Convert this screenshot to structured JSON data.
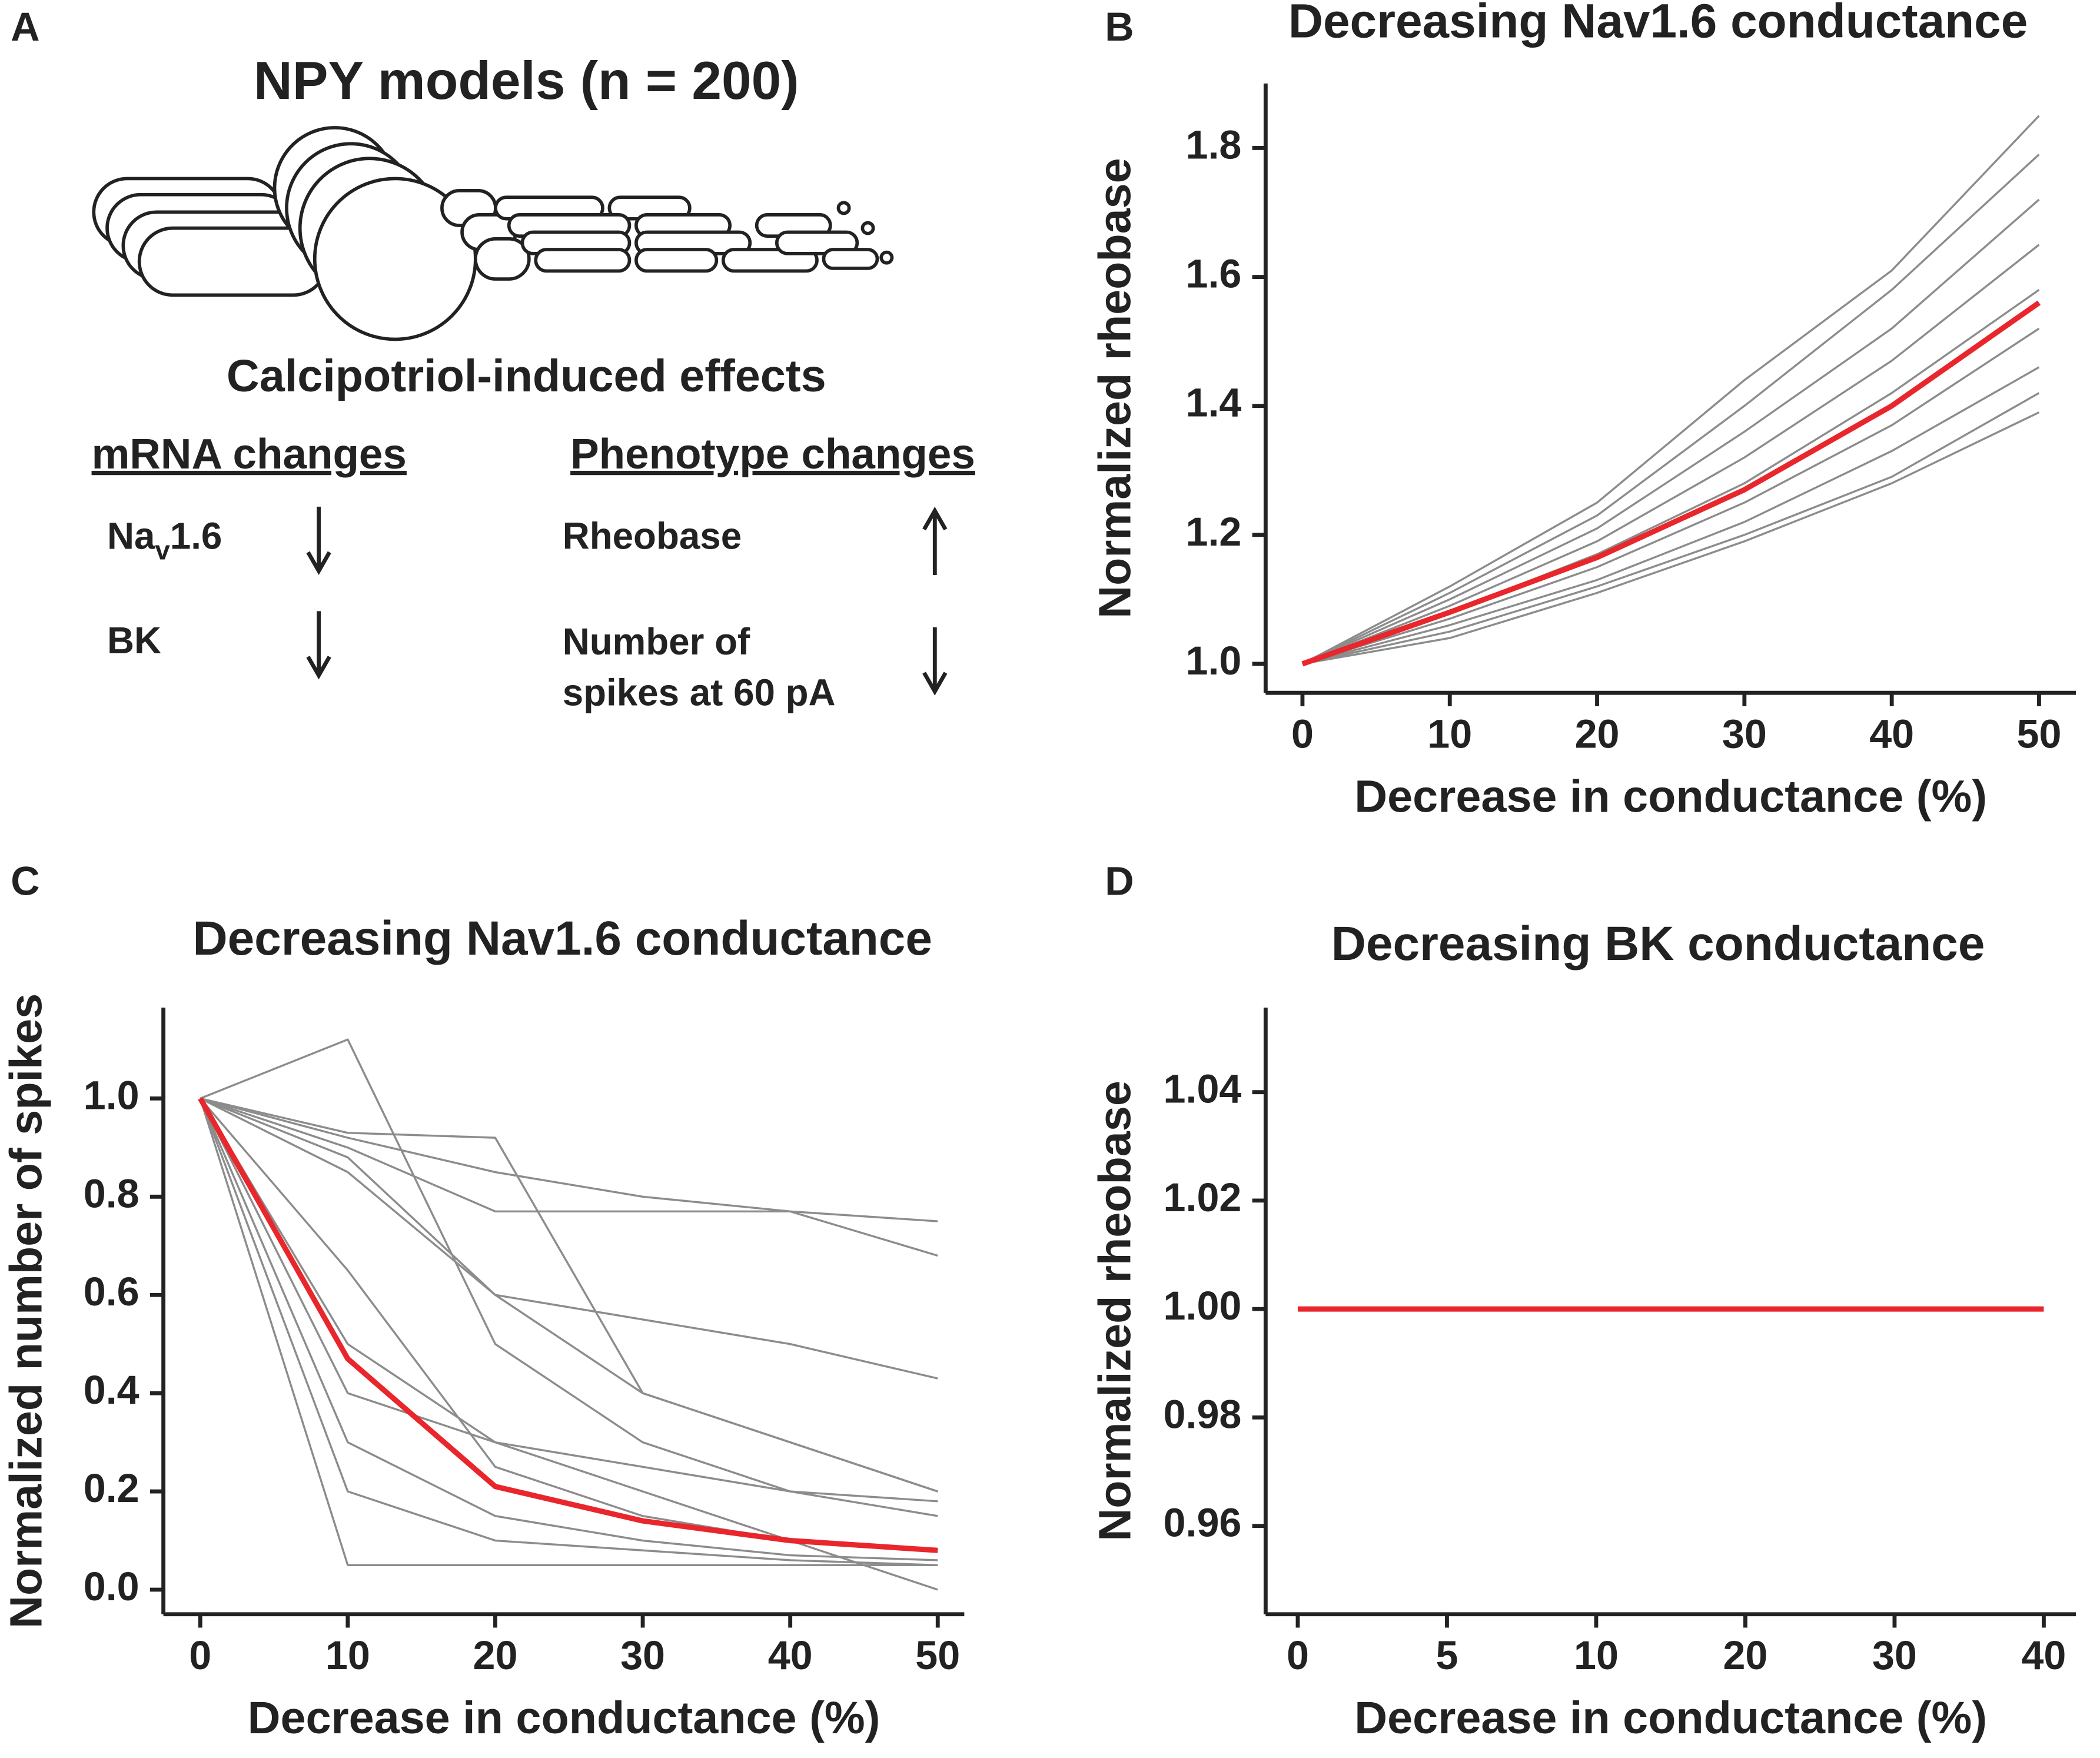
{
  "panel_a": {
    "panel_label": "A",
    "title": "NPY models (n = 200)",
    "subtitle": "Calcipotriol-induced effects",
    "mrna": {
      "heading": "mRNA changes",
      "items": [
        {
          "label": {
            "base": "Na",
            "sub": "v",
            "rest": "1.6"
          },
          "direction": "down"
        },
        {
          "label": "BK",
          "direction": "down"
        }
      ]
    },
    "phenotype": {
      "heading": "Phenotype changes",
      "items": [
        {
          "label": [
            "Rheobase"
          ],
          "direction": "up"
        },
        {
          "label": [
            "Number of",
            "spikes at 60 pA"
          ],
          "direction": "down"
        }
      ]
    }
  },
  "chart_data": [
    {
      "type": "line",
      "panel_label": "B",
      "title": "Decreasing Nav1.6 conductance",
      "xlabel": "Decrease in conductance (%)",
      "ylabel": "Normalized rheobase",
      "x": [
        0,
        10,
        20,
        30,
        40,
        50
      ],
      "xlim": [
        -2.5,
        52.5
      ],
      "xticks": [
        0,
        10,
        20,
        30,
        40,
        50
      ],
      "ylim": [
        0.955,
        1.9
      ],
      "yticks": [
        {
          "value": 1,
          "label": "1.0"
        },
        1.2,
        1.4,
        1.6,
        1.8
      ],
      "series": [
        {
          "color": "#8c8c8c",
          "values": [
            1,
            1.12,
            1.25,
            1.44,
            1.61,
            1.85
          ]
        },
        {
          "color": "#8c8c8c",
          "values": [
            1,
            1.11,
            1.23,
            1.4,
            1.58,
            1.79
          ]
        },
        {
          "color": "#8c8c8c",
          "values": [
            1,
            1.1,
            1.21,
            1.36,
            1.52,
            1.72
          ]
        },
        {
          "color": "#8c8c8c",
          "values": [
            1,
            1.09,
            1.19,
            1.32,
            1.47,
            1.65
          ]
        },
        {
          "color": "#8c8c8c",
          "values": [
            1,
            1.08,
            1.17,
            1.28,
            1.42,
            1.58
          ]
        },
        {
          "color": "#8c8c8c",
          "values": [
            1,
            1.07,
            1.15,
            1.25,
            1.37,
            1.52
          ]
        },
        {
          "color": "#8c8c8c",
          "values": [
            1,
            1.06,
            1.13,
            1.22,
            1.33,
            1.46
          ]
        },
        {
          "color": "#8c8c8c",
          "values": [
            1,
            1.05,
            1.12,
            1.2,
            1.29,
            1.42
          ]
        },
        {
          "color": "#8c8c8c",
          "values": [
            1,
            1.04,
            1.11,
            1.19,
            1.28,
            1.39
          ]
        },
        {
          "color": "#e8262b",
          "values": [
            1,
            1.08,
            1.165,
            1.27,
            1.4,
            1.56
          ]
        }
      ]
    },
    {
      "type": "line",
      "panel_label": "C",
      "title": "Decreasing Nav1.6 conductance",
      "xlabel": "Decrease in conductance (%)",
      "ylabel": "Normalized number of spikes",
      "x": [
        0,
        10,
        20,
        30,
        40,
        50
      ],
      "xlim": [
        -2.5,
        51.8
      ],
      "xticks": [
        0,
        10,
        20,
        30,
        40,
        50
      ],
      "ylim": [
        -0.05,
        1.185
      ],
      "yticks": [
        {
          "value": 0,
          "label": "0.0"
        },
        0.2,
        0.4,
        0.6,
        0.8,
        {
          "value": 1,
          "label": "1.0"
        }
      ],
      "series": [
        {
          "color": "#8c8c8c",
          "values": [
            1,
            1.12,
            0.5,
            0.3,
            0.2,
            0.15
          ]
        },
        {
          "color": "#8c8c8c",
          "values": [
            1,
            0.92,
            0.85,
            0.8,
            0.77,
            0.75
          ]
        },
        {
          "color": "#8c8c8c",
          "values": [
            1,
            0.9,
            0.77,
            0.77,
            0.77,
            0.68
          ]
        },
        {
          "color": "#8c8c8c",
          "values": [
            1,
            0.88,
            0.6,
            0.55,
            0.5,
            0.43
          ]
        },
        {
          "color": "#8c8c8c",
          "values": [
            1,
            0.93,
            0.92,
            0.4,
            0.3,
            0.2
          ]
        },
        {
          "color": "#8c8c8c",
          "values": [
            1,
            0.85,
            0.6,
            0.4,
            0.3,
            0.2
          ]
        },
        {
          "color": "#8c8c8c",
          "values": [
            1,
            0.65,
            0.25,
            0.15,
            0.1,
            0.08
          ]
        },
        {
          "color": "#8c8c8c",
          "values": [
            1,
            0.4,
            0.3,
            0.25,
            0.2,
            0.18
          ]
        },
        {
          "color": "#8c8c8c",
          "values": [
            1,
            0.3,
            0.15,
            0.1,
            0.07,
            0.06
          ]
        },
        {
          "color": "#8c8c8c",
          "values": [
            1,
            0.5,
            0.3,
            0.2,
            0.1,
            0.0
          ]
        },
        {
          "color": "#8c8c8c",
          "values": [
            1,
            0.2,
            0.1,
            0.08,
            0.06,
            0.05
          ]
        },
        {
          "color": "#8c8c8c",
          "values": [
            1,
            0.05,
            0.05,
            0.05,
            0.05,
            0.05
          ]
        },
        {
          "color": "#e8262b",
          "values": [
            1,
            0.47,
            0.21,
            0.14,
            0.1,
            0.08
          ]
        }
      ]
    },
    {
      "type": "line",
      "panel_label": "D",
      "title": "Decreasing BK conductance",
      "xlabel": "Decrease in conductance (%)",
      "ylabel": "Normalized rheobase",
      "categories": [
        "0",
        "5",
        "10",
        "20",
        "30",
        "40"
      ],
      "ylim": [
        0.9437,
        1.0556
      ],
      "yticks": [
        0.96,
        0.98,
        {
          "value": 1,
          "label": "1.00"
        },
        1.02,
        1.04
      ],
      "series": [
        {
          "color": "#e8262b",
          "values": [
            1,
            1,
            1,
            1,
            1,
            1
          ]
        }
      ]
    }
  ]
}
